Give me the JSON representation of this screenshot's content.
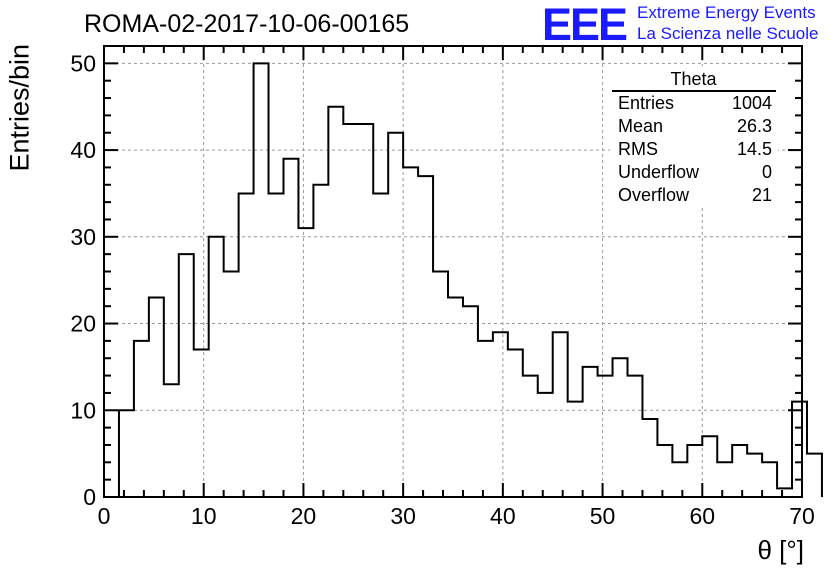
{
  "chart_data": {
    "type": "histogram",
    "title": "ROMA-02-2017-10-06-00165",
    "xlabel": "θ [°]",
    "ylabel": "Entries/bin",
    "xlim": [
      0,
      70
    ],
    "ylim": [
      0,
      52
    ],
    "x_ticks": [
      0,
      10,
      20,
      30,
      40,
      50,
      60,
      70
    ],
    "y_ticks": [
      0,
      10,
      20,
      30,
      40,
      50
    ],
    "grid": true,
    "bin_width": 1.5,
    "bin_edges_start": 1.5,
    "values": [
      10,
      18,
      23,
      13,
      28,
      17,
      30,
      26,
      35,
      50,
      35,
      39,
      31,
      36,
      45,
      43,
      43,
      35,
      42,
      38,
      37,
      26,
      23,
      22,
      18,
      19,
      17,
      14,
      12,
      19,
      11,
      15,
      14,
      16,
      14,
      9,
      6,
      4,
      6,
      7,
      4,
      6,
      5,
      4,
      1,
      11,
      5
    ],
    "stats": {
      "name": "Theta",
      "rows": [
        {
          "label": "Entries",
          "value": "1004"
        },
        {
          "label": "Mean",
          "value": "26.3"
        },
        {
          "label": "RMS",
          "value": "14.5"
        },
        {
          "label": "Underflow",
          "value": "0"
        },
        {
          "label": "Overflow",
          "value": "21"
        }
      ]
    }
  },
  "logo": {
    "mark": "EEE",
    "line1": "Extreme Energy Events",
    "line2": "La Scienza nelle Scuole",
    "color": "#1a1aff"
  }
}
